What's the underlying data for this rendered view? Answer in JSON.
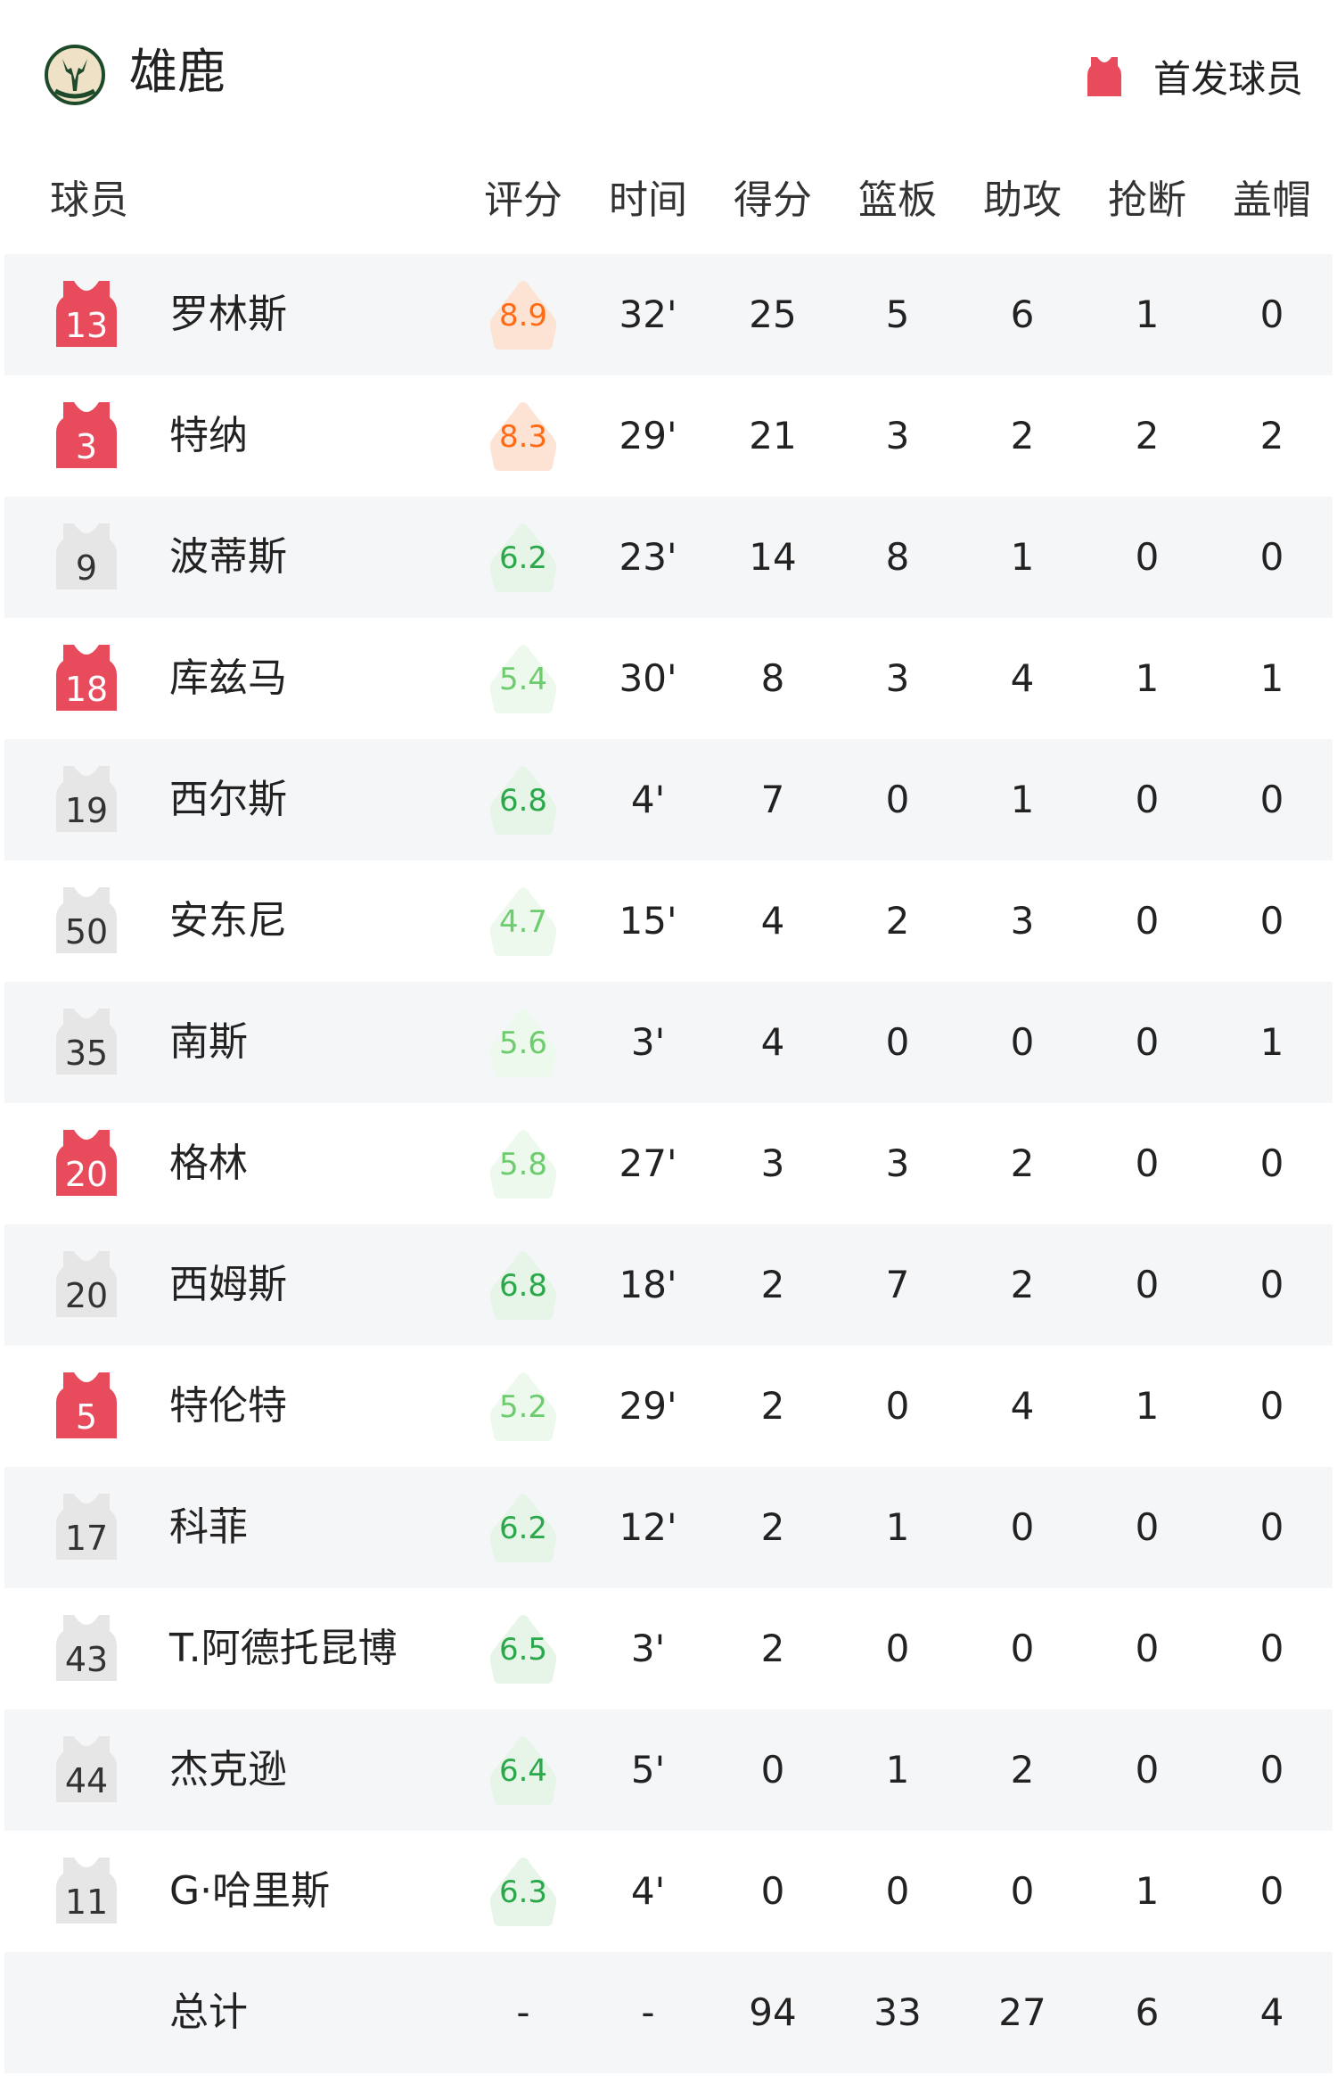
{
  "team": {
    "name": "雄鹿",
    "logo_icon": "bucks-logo-icon"
  },
  "legend": {
    "label": "首发球员",
    "icon": "jersey-icon",
    "color": "#e84c5c"
  },
  "columns": [
    "球员",
    "评分",
    "时间",
    "得分",
    "篮板",
    "助攻",
    "抢断",
    "盖帽"
  ],
  "colors": {
    "starter_jersey": "#e84c5c",
    "bench_jersey": "#e6e6e6",
    "rating_high_bg": "#fde3d4",
    "rating_high_text": "#ff6a13",
    "rating_good_bg": "#e6f5e8",
    "rating_good_text": "#2aa84a",
    "rating_mid_bg": "#eef9ee",
    "rating_mid_text": "#6ccc6e",
    "row_alt_bg": "#f5f6f8"
  },
  "players": [
    {
      "number": "13",
      "name": "罗林斯",
      "starter": true,
      "rating": "8.9",
      "tier": "high",
      "min": "32'",
      "pts": "25",
      "reb": "5",
      "ast": "6",
      "stl": "1",
      "blk": "0"
    },
    {
      "number": "3",
      "name": "特纳",
      "starter": true,
      "rating": "8.3",
      "tier": "high",
      "min": "29'",
      "pts": "21",
      "reb": "3",
      "ast": "2",
      "stl": "2",
      "blk": "2"
    },
    {
      "number": "9",
      "name": "波蒂斯",
      "starter": false,
      "rating": "6.2",
      "tier": "good",
      "min": "23'",
      "pts": "14",
      "reb": "8",
      "ast": "1",
      "stl": "0",
      "blk": "0"
    },
    {
      "number": "18",
      "name": "库兹马",
      "starter": true,
      "rating": "5.4",
      "tier": "mid",
      "min": "30'",
      "pts": "8",
      "reb": "3",
      "ast": "4",
      "stl": "1",
      "blk": "1"
    },
    {
      "number": "19",
      "name": "西尔斯",
      "starter": false,
      "rating": "6.8",
      "tier": "good",
      "min": "4'",
      "pts": "7",
      "reb": "0",
      "ast": "1",
      "stl": "0",
      "blk": "0"
    },
    {
      "number": "50",
      "name": "安东尼",
      "starter": false,
      "rating": "4.7",
      "tier": "mid",
      "min": "15'",
      "pts": "4",
      "reb": "2",
      "ast": "3",
      "stl": "0",
      "blk": "0"
    },
    {
      "number": "35",
      "name": "南斯",
      "starter": false,
      "rating": "5.6",
      "tier": "mid",
      "min": "3'",
      "pts": "4",
      "reb": "0",
      "ast": "0",
      "stl": "0",
      "blk": "1"
    },
    {
      "number": "20",
      "name": "格林",
      "starter": true,
      "rating": "5.8",
      "tier": "mid",
      "min": "27'",
      "pts": "3",
      "reb": "3",
      "ast": "2",
      "stl": "0",
      "blk": "0"
    },
    {
      "number": "20",
      "name": "西姆斯",
      "starter": false,
      "rating": "6.8",
      "tier": "good",
      "min": "18'",
      "pts": "2",
      "reb": "7",
      "ast": "2",
      "stl": "0",
      "blk": "0"
    },
    {
      "number": "5",
      "name": "特伦特",
      "starter": true,
      "rating": "5.2",
      "tier": "mid",
      "min": "29'",
      "pts": "2",
      "reb": "0",
      "ast": "4",
      "stl": "1",
      "blk": "0"
    },
    {
      "number": "17",
      "name": "科菲",
      "starter": false,
      "rating": "6.2",
      "tier": "good",
      "min": "12'",
      "pts": "2",
      "reb": "1",
      "ast": "0",
      "stl": "0",
      "blk": "0"
    },
    {
      "number": "43",
      "name": "T.阿德托昆博",
      "starter": false,
      "rating": "6.5",
      "tier": "good",
      "min": "3'",
      "pts": "2",
      "reb": "0",
      "ast": "0",
      "stl": "0",
      "blk": "0"
    },
    {
      "number": "44",
      "name": "杰克逊",
      "starter": false,
      "rating": "6.4",
      "tier": "good",
      "min": "5'",
      "pts": "0",
      "reb": "1",
      "ast": "2",
      "stl": "0",
      "blk": "0"
    },
    {
      "number": "11",
      "name": "G·哈里斯",
      "starter": false,
      "rating": "6.3",
      "tier": "good",
      "min": "4'",
      "pts": "0",
      "reb": "0",
      "ast": "0",
      "stl": "1",
      "blk": "0"
    }
  ],
  "total": {
    "label": "总计",
    "rating": "-",
    "min": "-",
    "pts": "94",
    "reb": "33",
    "ast": "27",
    "stl": "6",
    "blk": "4"
  }
}
